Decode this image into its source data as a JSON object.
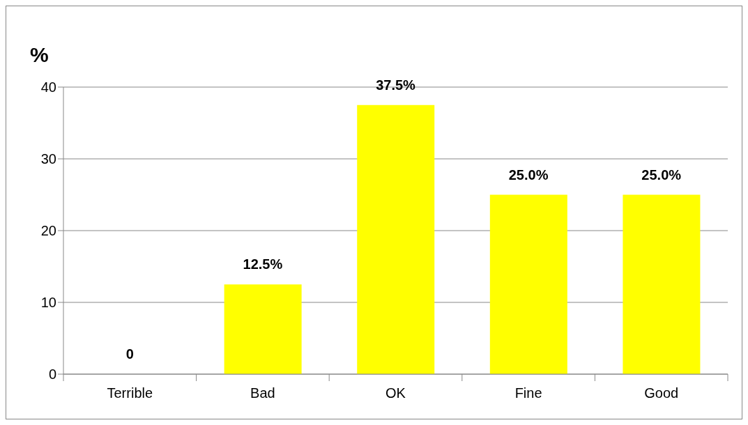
{
  "chart_data": {
    "type": "bar",
    "ylabel": "%",
    "categories": [
      "Terrible",
      "Bad",
      "OK",
      "Fine",
      "Good"
    ],
    "values": [
      0,
      12.5,
      37.5,
      25.0,
      25.0
    ],
    "value_labels": [
      "0",
      "12.5%",
      "37.5%",
      "25.0%",
      "25.0%"
    ],
    "color": "#ffff00",
    "ylim": [
      0,
      40
    ],
    "yticks": [
      0,
      10,
      20,
      30,
      40
    ],
    "grid": "y"
  }
}
